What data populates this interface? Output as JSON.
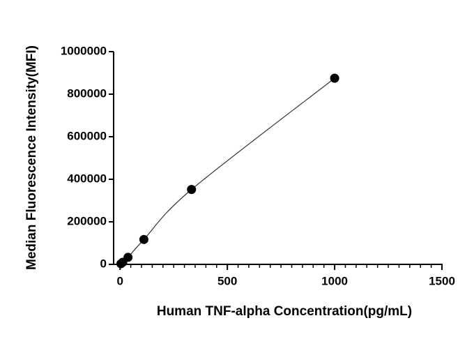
{
  "chart_data": {
    "type": "scatter",
    "x_label": "Human TNF-alpha Concentration(pg/mL)",
    "y_label": "Median Fluorescence Intensity(MFI)",
    "x": [
      4.1,
      12.3,
      37,
      111,
      333,
      1000
    ],
    "series": [
      {
        "color": "#000000",
        "values": [
          3000,
          10000,
          33000,
          117000,
          352000,
          875000
        ]
      }
    ],
    "line": true,
    "xlim": [
      -30,
      1500
    ],
    "xticks": [
      0,
      500,
      1000,
      1500
    ],
    "x_minor_ticks": [
      50,
      100,
      150,
      200,
      250,
      300,
      350,
      400,
      450,
      550,
      600,
      650,
      700,
      750,
      800,
      850,
      900,
      950,
      1050,
      1100,
      1150,
      1200,
      1250,
      1300,
      1350,
      1400,
      1450
    ],
    "ylim": [
      0,
      1000000
    ],
    "yticks": [
      0,
      200000,
      400000,
      600000,
      800000,
      1000000
    ]
  }
}
